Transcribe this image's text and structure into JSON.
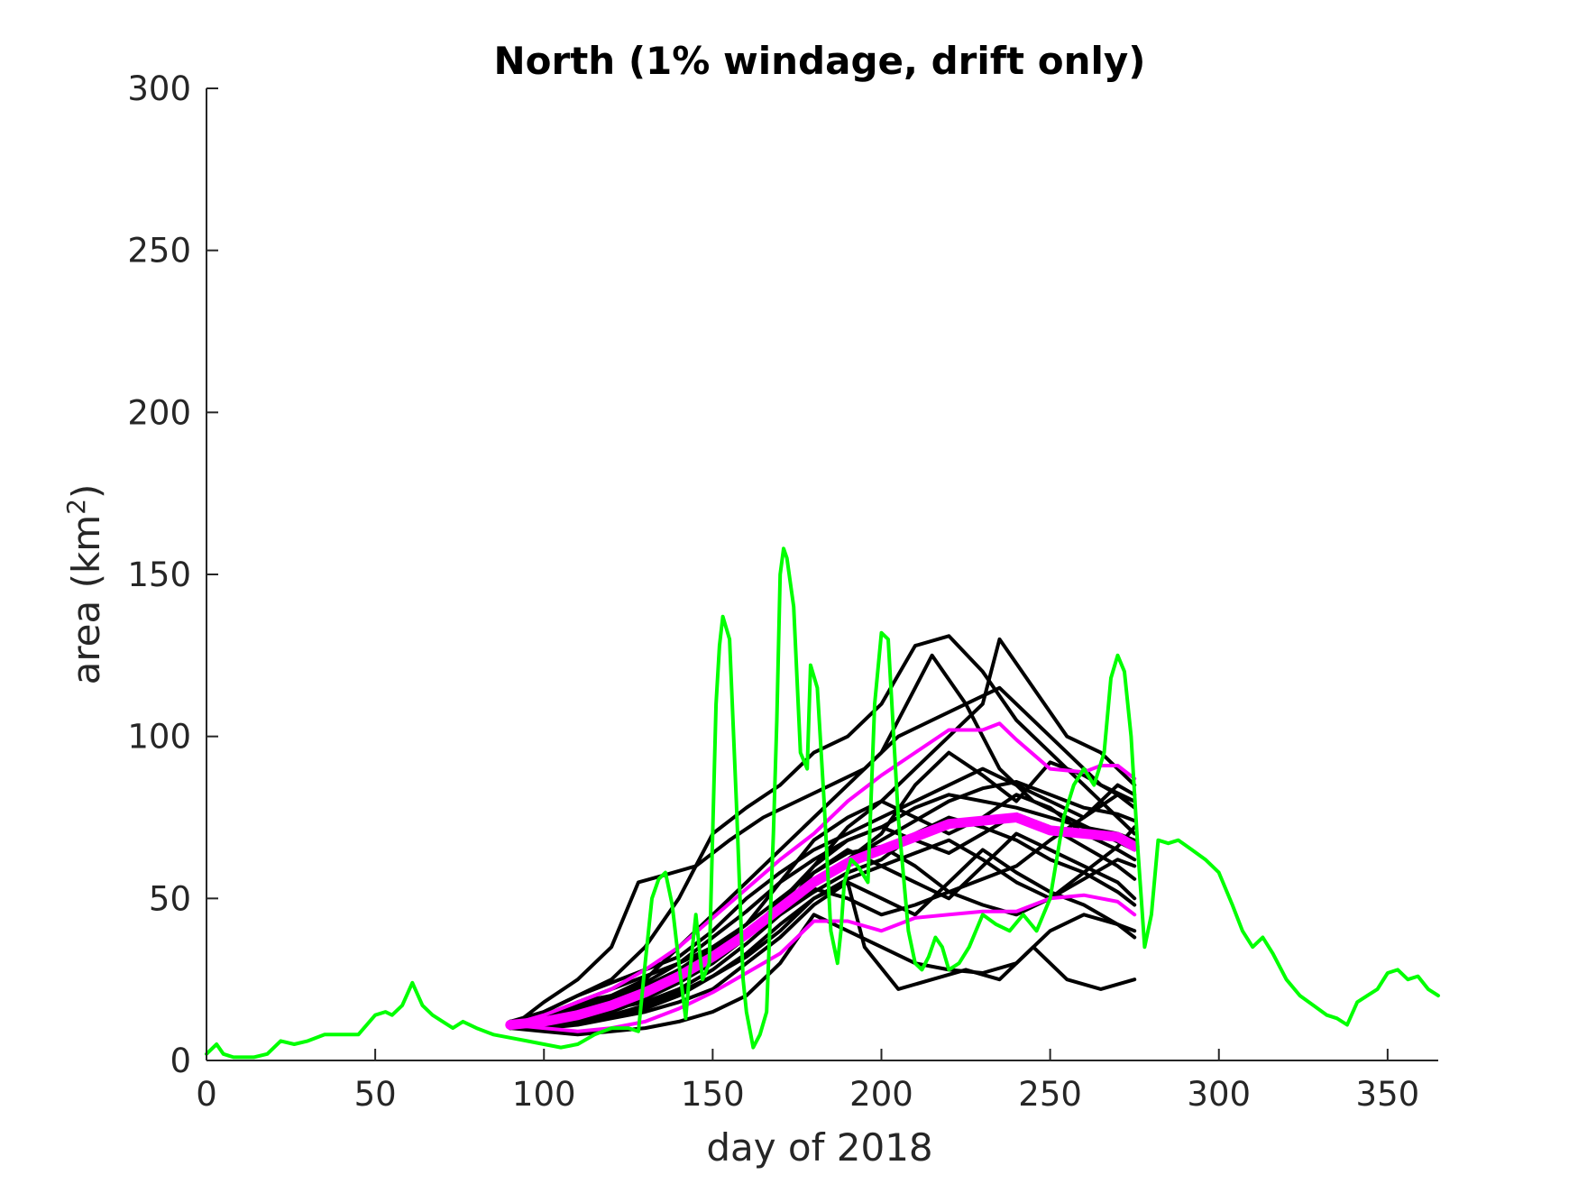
{
  "chart_data": {
    "type": "line",
    "title": "North (1% windage, drift only)",
    "xlabel": "day of 2018",
    "ylabel_main": "area (km",
    "ylabel_sup": "2",
    "ylabel_close": ")",
    "xlim": [
      0,
      365
    ],
    "ylim": [
      0,
      300
    ],
    "xticks": [
      0,
      50,
      100,
      150,
      200,
      250,
      300,
      350
    ],
    "yticks": [
      0,
      50,
      100,
      150,
      200,
      250,
      300
    ],
    "grid": false,
    "legend": "none",
    "colors": {
      "ensemble": "#000000",
      "median": "#ff00ff",
      "bounds": "#ff00ff",
      "observed": "#00ff00",
      "axis": "#262626"
    },
    "observed": {
      "x": [
        0,
        3,
        5,
        8,
        10,
        14,
        18,
        22,
        26,
        30,
        35,
        40,
        45,
        50,
        53,
        55,
        58,
        61,
        64,
        67,
        70,
        73,
        76,
        80,
        85,
        90,
        95,
        100,
        105,
        110,
        115,
        120,
        125,
        128,
        130,
        132,
        134,
        136,
        138,
        140,
        142,
        143,
        145,
        147,
        149,
        151,
        152,
        153,
        155,
        157,
        159,
        160,
        162,
        164,
        166,
        168,
        169,
        170,
        171,
        172,
        174,
        176,
        178,
        179,
        181,
        183,
        185,
        187,
        188,
        189,
        191,
        193,
        196,
        198,
        200,
        202,
        205,
        208,
        210,
        212,
        214,
        216,
        218,
        220,
        223,
        226,
        230,
        234,
        238,
        242,
        246,
        250,
        254,
        257,
        260,
        263,
        266,
        268,
        270,
        272,
        274,
        276,
        278,
        280,
        282,
        285,
        288,
        292,
        296,
        300,
        304,
        307,
        310,
        313,
        316,
        320,
        324,
        328,
        332,
        335,
        338,
        341,
        344,
        347,
        350,
        353,
        356,
        359,
        362,
        365
      ],
      "y": [
        2,
        5,
        2,
        1,
        1,
        1,
        2,
        6,
        5,
        6,
        8,
        8,
        8,
        14,
        15,
        14,
        17,
        24,
        17,
        14,
        12,
        10,
        12,
        10,
        8,
        7,
        6,
        5,
        4,
        5,
        8,
        10,
        10,
        9,
        30,
        50,
        56,
        58,
        48,
        30,
        13,
        25,
        45,
        25,
        30,
        110,
        128,
        137,
        130,
        80,
        25,
        15,
        4,
        8,
        15,
        70,
        105,
        150,
        158,
        155,
        140,
        95,
        90,
        122,
        115,
        80,
        40,
        30,
        40,
        55,
        62,
        60,
        55,
        110,
        132,
        130,
        75,
        40,
        30,
        28,
        32,
        38,
        35,
        28,
        30,
        35,
        45,
        42,
        40,
        45,
        40,
        50,
        75,
        85,
        90,
        85,
        95,
        118,
        125,
        120,
        100,
        65,
        35,
        45,
        68,
        67,
        68,
        65,
        62,
        58,
        48,
        40,
        35,
        38,
        33,
        25,
        20,
        17,
        14,
        13,
        11,
        18,
        20,
        22,
        27,
        28,
        25,
        26,
        22,
        20
      ]
    },
    "median": {
      "x": [
        90,
        100,
        110,
        120,
        130,
        140,
        150,
        160,
        170,
        180,
        190,
        200,
        210,
        220,
        230,
        240,
        250,
        260,
        270,
        275
      ],
      "y": [
        11,
        12,
        14,
        17,
        21,
        26,
        32,
        39,
        47,
        55,
        61,
        65,
        69,
        73,
        74,
        75,
        71,
        70,
        69,
        66
      ]
    },
    "upper": {
      "x": [
        90,
        100,
        110,
        120,
        130,
        140,
        150,
        160,
        170,
        180,
        190,
        200,
        210,
        220,
        230,
        235,
        240,
        250,
        260,
        265,
        270,
        275
      ],
      "y": [
        11,
        14,
        18,
        22,
        28,
        35,
        44,
        53,
        62,
        70,
        80,
        88,
        95,
        102,
        102,
        104,
        99,
        90,
        89,
        91,
        91,
        87
      ]
    },
    "lower": {
      "x": [
        90,
        100,
        110,
        120,
        130,
        140,
        150,
        160,
        170,
        180,
        190,
        200,
        210,
        220,
        230,
        240,
        250,
        260,
        270,
        275
      ],
      "y": [
        11,
        10,
        9,
        10,
        12,
        16,
        21,
        27,
        33,
        43,
        43,
        40,
        44,
        45,
        46,
        46,
        50,
        51,
        49,
        45
      ]
    },
    "ensemble": [
      {
        "x": [
          90,
          100,
          110,
          120,
          128,
          135,
          145,
          155,
          165,
          175,
          185,
          195,
          205,
          215,
          225,
          235,
          245,
          255,
          265,
          275
        ],
        "y": [
          10,
          18,
          25,
          35,
          55,
          57,
          60,
          68,
          75,
          80,
          85,
          90,
          100,
          105,
          110,
          115,
          105,
          95,
          85,
          80
        ]
      },
      {
        "x": [
          90,
          100,
          110,
          120,
          130,
          140,
          150,
          160,
          170,
          180,
          190,
          200,
          210,
          220,
          230,
          240,
          250,
          260,
          270,
          275
        ],
        "y": [
          10,
          15,
          20,
          25,
          35,
          50,
          70,
          78,
          85,
          95,
          100,
          110,
          128,
          131,
          120,
          105,
          95,
          85,
          75,
          70
        ]
      },
      {
        "x": [
          90,
          100,
          110,
          120,
          130,
          140,
          150,
          160,
          170,
          180,
          190,
          200,
          210,
          215,
          225,
          235,
          245,
          255,
          265,
          275
        ],
        "y": [
          12,
          14,
          18,
          20,
          25,
          35,
          45,
          55,
          65,
          75,
          85,
          95,
          115,
          125,
          110,
          90,
          80,
          75,
          70,
          65
        ]
      },
      {
        "x": [
          90,
          100,
          110,
          120,
          130,
          140,
          150,
          160,
          170,
          180,
          190,
          200,
          210,
          220,
          230,
          235,
          245,
          255,
          265,
          275
        ],
        "y": [
          11,
          13,
          16,
          18,
          22,
          28,
          35,
          42,
          55,
          68,
          75,
          80,
          90,
          100,
          110,
          130,
          115,
          100,
          95,
          85
        ]
      },
      {
        "x": [
          90,
          100,
          110,
          120,
          130,
          140,
          150,
          160,
          170,
          180,
          190,
          195,
          205,
          215,
          225,
          235,
          245,
          255,
          265,
          275
        ],
        "y": [
          12,
          11,
          12,
          14,
          16,
          20,
          26,
          32,
          40,
          50,
          55,
          35,
          22,
          25,
          28,
          25,
          35,
          25,
          22,
          25
        ]
      },
      {
        "x": [
          90,
          100,
          110,
          120,
          130,
          140,
          150,
          160,
          170,
          180,
          190,
          200,
          210,
          220,
          230,
          240,
          250,
          260,
          270,
          275
        ],
        "y": [
          10,
          9,
          8,
          9,
          10,
          12,
          15,
          20,
          30,
          45,
          40,
          35,
          30,
          28,
          27,
          30,
          40,
          45,
          42,
          38
        ]
      },
      {
        "x": [
          90,
          100,
          110,
          120,
          130,
          140,
          150,
          160,
          170,
          180,
          190,
          200,
          210,
          220,
          230,
          240,
          250,
          260,
          270,
          275
        ],
        "y": [
          11,
          12,
          15,
          17,
          20,
          25,
          30,
          38,
          46,
          58,
          65,
          60,
          55,
          50,
          60,
          70,
          65,
          60,
          55,
          50
        ]
      },
      {
        "x": [
          90,
          100,
          110,
          120,
          130,
          140,
          150,
          160,
          170,
          180,
          190,
          200,
          210,
          220,
          230,
          240,
          250,
          260,
          270,
          275
        ],
        "y": [
          12,
          15,
          20,
          24,
          28,
          32,
          40,
          50,
          58,
          65,
          70,
          75,
          80,
          85,
          90,
          85,
          80,
          75,
          82,
          80
        ]
      },
      {
        "x": [
          90,
          100,
          110,
          120,
          130,
          140,
          150,
          160,
          170,
          180,
          190,
          200,
          210,
          220,
          230,
          240,
          250,
          260,
          270,
          275
        ],
        "y": [
          10,
          12,
          14,
          16,
          18,
          22,
          28,
          36,
          45,
          52,
          58,
          62,
          70,
          75,
          72,
          68,
          62,
          58,
          52,
          48
        ]
      },
      {
        "x": [
          90,
          100,
          110,
          120,
          130,
          140,
          150,
          160,
          170,
          180,
          190,
          200,
          210,
          220,
          230,
          240,
          250,
          260,
          270,
          275
        ],
        "y": [
          11,
          10,
          11,
          13,
          15,
          18,
          22,
          30,
          38,
          48,
          55,
          50,
          45,
          55,
          65,
          58,
          52,
          48,
          42,
          40
        ]
      },
      {
        "x": [
          90,
          100,
          110,
          120,
          130,
          140,
          150,
          160,
          170,
          180,
          190,
          200,
          210,
          220,
          230,
          240,
          250,
          260,
          270,
          275
        ],
        "y": [
          12,
          14,
          17,
          20,
          24,
          30,
          38,
          46,
          55,
          62,
          68,
          72,
          78,
          82,
          80,
          78,
          75,
          72,
          70,
          68
        ]
      },
      {
        "x": [
          90,
          100,
          110,
          120,
          130,
          140,
          150,
          160,
          170,
          180,
          190,
          200,
          210,
          220,
          230,
          240,
          250,
          260,
          270,
          275
        ],
        "y": [
          10,
          11,
          12,
          14,
          17,
          21,
          26,
          33,
          42,
          50,
          56,
          60,
          64,
          68,
          62,
          55,
          50,
          56,
          62,
          60
        ]
      },
      {
        "x": [
          90,
          100,
          110,
          120,
          130,
          140,
          150,
          160,
          170,
          180,
          190,
          200,
          210,
          220,
          230,
          240,
          250,
          260,
          270,
          275
        ],
        "y": [
          11,
          13,
          16,
          19,
          23,
          28,
          34,
          42,
          50,
          58,
          64,
          66,
          60,
          52,
          48,
          45,
          50,
          58,
          66,
          72
        ]
      },
      {
        "x": [
          90,
          100,
          110,
          120,
          130,
          140,
          150,
          160,
          170,
          180,
          190,
          200,
          210,
          220,
          230,
          240,
          250,
          260,
          270,
          275
        ],
        "y": [
          12,
          12,
          13,
          15,
          19,
          24,
          30,
          38,
          47,
          56,
          62,
          70,
          85,
          95,
          88,
          80,
          92,
          88,
          82,
          78
        ]
      },
      {
        "x": [
          90,
          100,
          110,
          120,
          130,
          140,
          150,
          160,
          170,
          180,
          190,
          200,
          210,
          220,
          230,
          240,
          250,
          260,
          270,
          275
        ],
        "y": [
          10,
          13,
          18,
          22,
          26,
          30,
          35,
          40,
          48,
          60,
          72,
          80,
          75,
          70,
          75,
          82,
          78,
          70,
          65,
          62
        ]
      },
      {
        "x": [
          90,
          100,
          110,
          120,
          130,
          140,
          150,
          160,
          170,
          180,
          190,
          200,
          210,
          220,
          230,
          240,
          250,
          260,
          270,
          275
        ],
        "y": [
          11,
          12,
          14,
          17,
          21,
          27,
          33,
          40,
          47,
          53,
          50,
          45,
          48,
          52,
          56,
          60,
          68,
          75,
          85,
          82
        ]
      },
      {
        "x": [
          90,
          100,
          110,
          120,
          130,
          140,
          150,
          160,
          170,
          180,
          190,
          200,
          210,
          220,
          230,
          240,
          250,
          260,
          270,
          275
        ],
        "y": [
          12,
          14,
          16,
          18,
          21,
          25,
          31,
          39,
          49,
          60,
          68,
          72,
          68,
          64,
          70,
          76,
          72,
          66,
          60,
          56
        ]
      },
      {
        "x": [
          90,
          100,
          110,
          120,
          130,
          140,
          150,
          160,
          170,
          180,
          190,
          200,
          210,
          220,
          230,
          240,
          250,
          260,
          270,
          275
        ],
        "y": [
          10,
          11,
          13,
          16,
          20,
          26,
          32,
          40,
          48,
          56,
          62,
          68,
          74,
          80,
          84,
          86,
          82,
          78,
          76,
          74
        ]
      }
    ]
  }
}
